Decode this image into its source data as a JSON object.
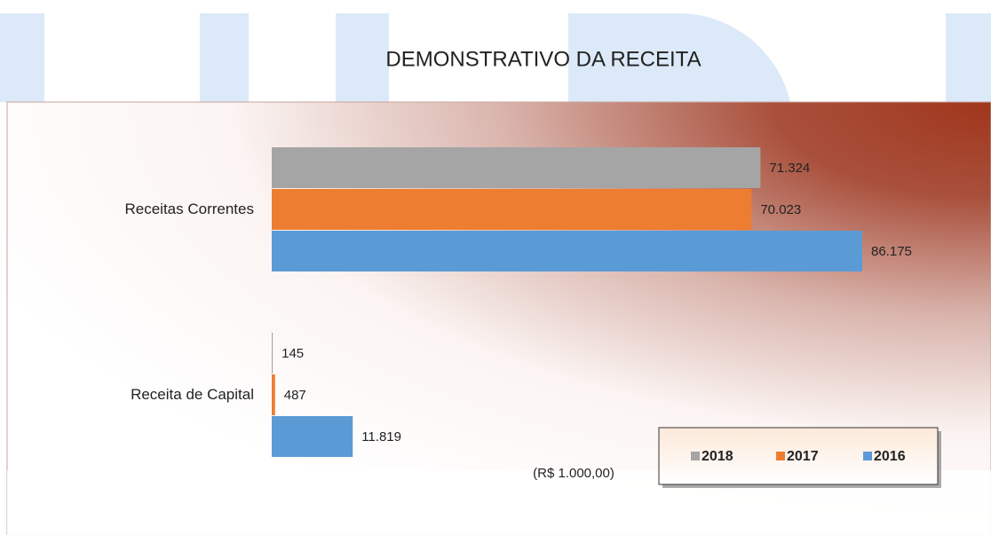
{
  "chart_data": {
    "type": "bar",
    "orientation": "horizontal",
    "title": "DEMONSTRATIVO DA RECEITA",
    "annotation": "(R$ 1.000,00)",
    "categories": [
      "Receitas Correntes",
      "Receita de Capital"
    ],
    "series": [
      {
        "name": "2018",
        "color": "#a5a5a5",
        "values": [
          71324,
          145
        ],
        "value_labels": [
          "71.324",
          "145"
        ]
      },
      {
        "name": "2017",
        "color": "#ed7d31",
        "values": [
          70023,
          487
        ],
        "value_labels": [
          "70.023",
          "487"
        ]
      },
      {
        "name": "2016",
        "color": "#5b9bd5",
        "values": [
          86175,
          11819
        ],
        "value_labels": [
          "86.175",
          "11.819"
        ]
      }
    ],
    "legend": "bottom-right"
  }
}
